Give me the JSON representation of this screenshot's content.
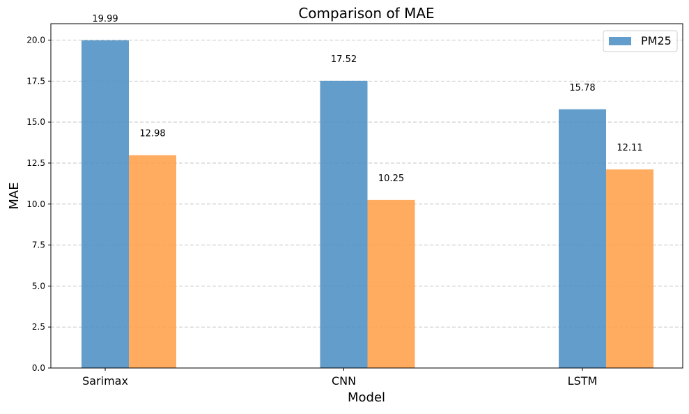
{
  "chart_data": {
    "type": "bar",
    "title": "Comparison of MAE",
    "xlabel": "Model",
    "ylabel": "MAE",
    "categories": [
      "Sarimax",
      "CNN",
      "LSTM"
    ],
    "series": [
      {
        "name": "PM25",
        "values": [
          19.99,
          17.52,
          15.78
        ],
        "color": "#4C8FC4",
        "labels": [
          "19.99",
          "17.52",
          "15.78"
        ]
      },
      {
        "name": "",
        "values": [
          12.98,
          10.25,
          12.11
        ],
        "color": "#FFA04A",
        "labels": [
          "12.98",
          "10.25",
          "12.11"
        ]
      }
    ],
    "ylim": [
      0,
      21
    ],
    "yticks": [
      0.0,
      2.5,
      5.0,
      7.5,
      10.0,
      12.5,
      15.0,
      17.5,
      20.0
    ],
    "ytick_labels": [
      "0.0",
      "2.5",
      "5.0",
      "7.5",
      "10.0",
      "12.5",
      "15.0",
      "17.5",
      "20.0"
    ],
    "grid": "horizontal dashed",
    "legend": {
      "position": "top-right",
      "entries": [
        "PM25"
      ]
    }
  }
}
